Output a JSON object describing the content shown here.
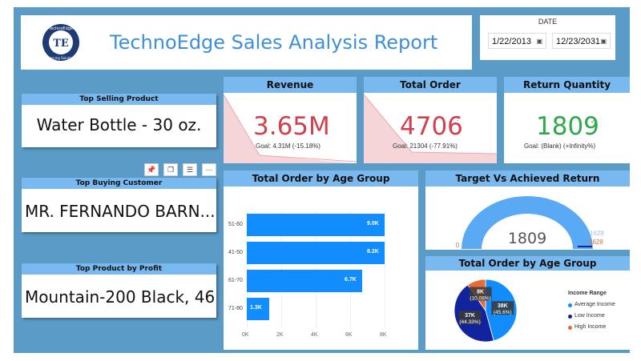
{
  "report": {
    "title": "TechnoEdge Sales Analysis Report",
    "logo_letters": "TE",
    "logo_ring_top": "TechnoEdge",
    "logo_ring_bottom": "Learning Solutions"
  },
  "date_filter": {
    "label": "DATE",
    "start": "1/22/2013",
    "end": "12/23/2031"
  },
  "kpis": {
    "revenue": {
      "title": "Revenue",
      "value": "3.65M",
      "mark": "!",
      "goal": "Goal: 4.31M (-15.18%)"
    },
    "total_order": {
      "title": "Total Order",
      "value": "4706",
      "mark": "!",
      "goal": "Goal: 21304 (-77.91%)"
    },
    "return_quantity": {
      "title": "Return Quantity",
      "value": "1809",
      "mark": "✓",
      "goal": "Goal: (Blank) (+Infinity%)"
    }
  },
  "cards": {
    "top_selling_product": {
      "title": "Top Selling Product",
      "value": "Water Bottle - 30 oz."
    },
    "top_buying_customer": {
      "title": "Top Buying Customer",
      "value": "MR. FERNANDO BARN..."
    },
    "top_product_by_profit": {
      "title": "Top Product by Profit",
      "value": "Mountain-200 Black, 46"
    }
  },
  "visual_toolbar": {
    "pin": "📌",
    "copy": "❐",
    "filter": "☰",
    "more": "⋯"
  },
  "age_chart": {
    "title": "Total Order by Age Group",
    "x_ticks": [
      "0K",
      "2K",
      "4K",
      "6K",
      "8K"
    ],
    "color": "#118dff"
  },
  "gauge": {
    "title": "Target Vs Achieved Return",
    "value": "1809",
    "min": "0",
    "target_a": "1628",
    "target_b": "1628"
  },
  "pie_chart": {
    "title": "Total Order by Age Group",
    "legend_title": "Income Range"
  },
  "chart_data": [
    {
      "type": "bar",
      "title": "Total Order by Age Group",
      "categories": [
        "51-60",
        "41-50",
        "61-70",
        "71-80"
      ],
      "values": [
        9.0,
        8.2,
        6.7,
        1.3
      ],
      "value_labels": [
        "9.0K",
        "8.2K",
        "6.7K",
        "1.3K"
      ],
      "xlim": [
        0,
        8
      ],
      "orientation": "horizontal"
    },
    {
      "type": "pie",
      "title": "Total Order by Age Group",
      "legend_title": "Income Range",
      "series": [
        {
          "name": "Average Income",
          "value": 38,
          "label": "38K",
          "pct": "(45.6%)",
          "color": "#118dff"
        },
        {
          "name": "Low Income",
          "value": 37,
          "label": "37K",
          "pct": "(44.33%)",
          "color": "#12239e"
        },
        {
          "name": "High Income",
          "value": 8,
          "label": "8K",
          "pct": "(10.08%)",
          "color": "#e66c37"
        }
      ]
    }
  ]
}
